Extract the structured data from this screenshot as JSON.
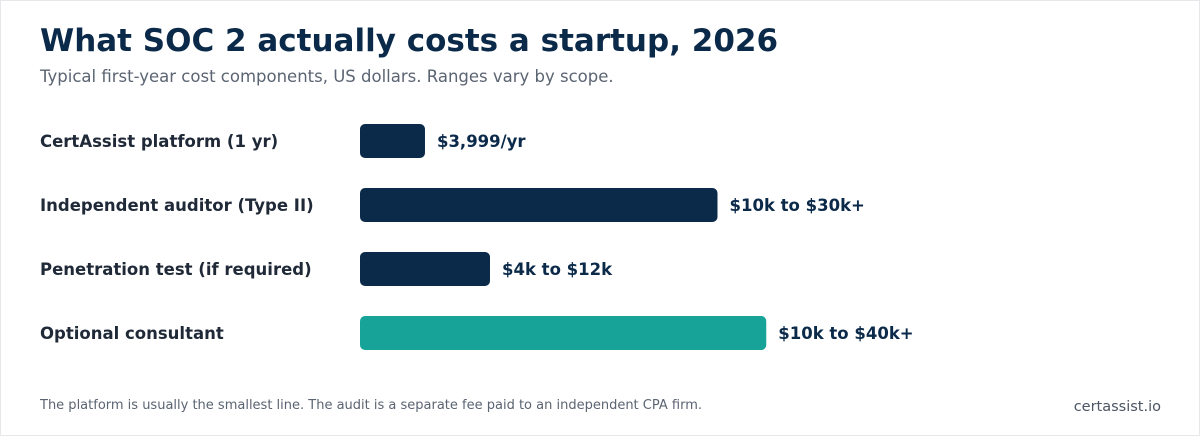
{
  "header": {
    "title": "What SOC 2 actually costs a startup, 2026",
    "subtitle": "Typical first-year cost components, US dollars. Ranges vary by scope."
  },
  "chart_data": {
    "type": "bar",
    "orientation": "horizontal",
    "unit": "USD",
    "categories": [
      "CertAssist platform (1 yr)",
      "Independent auditor (Type II)",
      "Penetration test (if required)",
      "Optional consultant"
    ],
    "values": [
      3999,
      22000,
      8000,
      25000
    ],
    "value_labels": [
      "$3,999/yr",
      "$10k to $30k+",
      "$4k to $12k",
      "$10k to $40k+"
    ],
    "bar_colors": [
      "#0b2a4a",
      "#0b2a4a",
      "#0b2a4a",
      "#17a398"
    ],
    "xlim": [
      0,
      50000
    ],
    "grid": false,
    "legend": "none"
  },
  "footer": {
    "note": "The platform is usually the smallest line. The audit is a separate fee paid to an independent CPA firm.",
    "brand": "certassist.io"
  },
  "colors": {
    "primary": "#0b2a4a",
    "accent": "#17a398",
    "label": "#1f2937",
    "muted": "#5b6472"
  }
}
